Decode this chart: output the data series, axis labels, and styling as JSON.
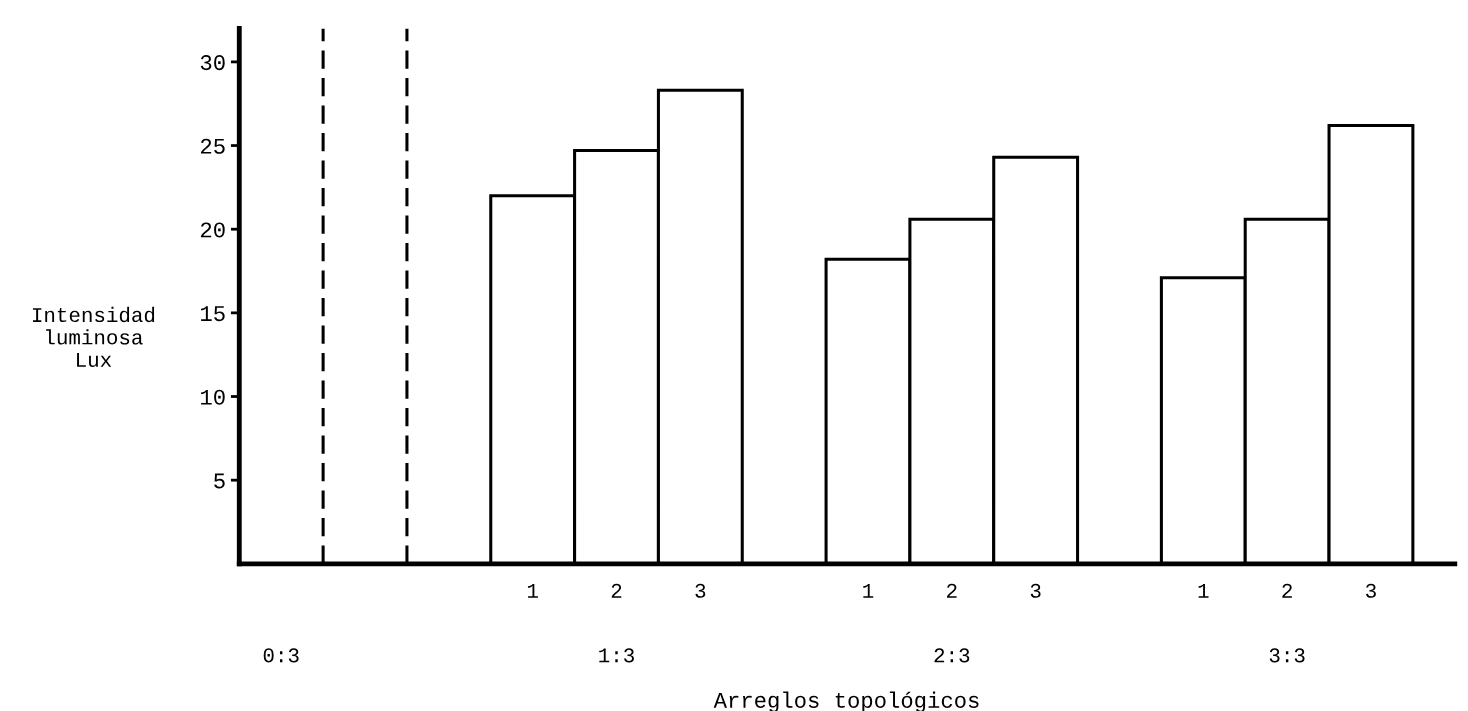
{
  "chart_data": {
    "type": "bar",
    "xlabel": "Arreglos topológicos",
    "ylabel": "Intensidad\nluminosa\nLux",
    "categories": [
      "0:3",
      "1:3",
      "2:3",
      "3:3"
    ],
    "series": [
      {
        "name": "1",
        "color": "#ffffff",
        "values": [
          null,
          22,
          18.2,
          17.1
        ]
      },
      {
        "name": "2",
        "color": "#ffffff",
        "values": [
          null,
          24.7,
          20.6,
          20.6
        ]
      },
      {
        "name": "3",
        "color": "#ffffff",
        "values": [
          null,
          28.3,
          24.3,
          26.2
        ]
      }
    ],
    "ref_lines": [
      {
        "axis": "x",
        "value": "0:3",
        "line_style": "dashed"
      },
      {
        "axis": "x",
        "value": "0:3",
        "line_style": "dashed"
      }
    ],
    "ylim": [
      0,
      32
    ],
    "yticks": [
      5,
      10,
      15,
      20,
      25,
      30
    ],
    "grid": false,
    "legend": false
  }
}
